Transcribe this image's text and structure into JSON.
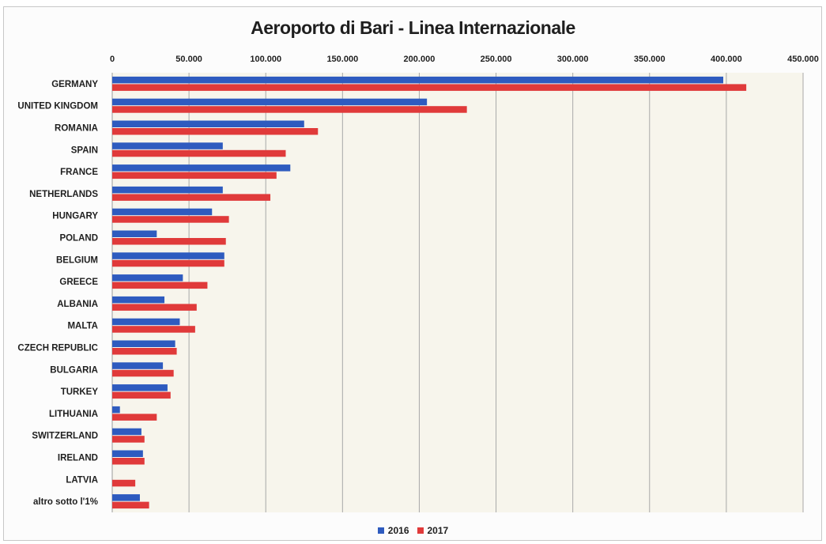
{
  "chart_data": {
    "type": "bar",
    "orientation": "horizontal",
    "title": "Aeroporto di Bari - Linea Internazionale",
    "categories": [
      "GERMANY",
      "UNITED KINGDOM",
      "ROMANIA",
      "SPAIN",
      "FRANCE",
      "NETHERLANDS",
      "HUNGARY",
      "POLAND",
      "BELGIUM",
      "GREECE",
      "ALBANIA",
      "MALTA",
      "CZECH REPUBLIC",
      "BULGARIA",
      "TURKEY",
      "LITHUANIA",
      "SWITZERLAND",
      "IRELAND",
      "LATVIA",
      "altro sotto l'1%"
    ],
    "series": [
      {
        "name": "2016",
        "color": "#2e5bbf",
        "values": [
          398000,
          205000,
          125000,
          72000,
          116000,
          72000,
          65000,
          29000,
          73000,
          46000,
          34000,
          44000,
          41000,
          33000,
          36000,
          5000,
          19000,
          20000,
          0,
          18000
        ]
      },
      {
        "name": "2017",
        "color": "#e03a3a",
        "values": [
          413000,
          231000,
          134000,
          113000,
          107000,
          103000,
          76000,
          74000,
          73000,
          62000,
          55000,
          54000,
          42000,
          40000,
          38000,
          29000,
          21000,
          21000,
          15000,
          24000
        ]
      }
    ],
    "xlim": [
      0,
      450000
    ],
    "xticks": [
      "0",
      "50.000",
      "100.000",
      "150.000",
      "200.000",
      "250.000",
      "300.000",
      "350.000",
      "400.000",
      "450.000"
    ],
    "xtick_values": [
      0,
      50000,
      100000,
      150000,
      200000,
      250000,
      300000,
      350000,
      400000,
      450000
    ],
    "xaxis_position": "top",
    "grid": true,
    "legend_position": "bottom"
  }
}
